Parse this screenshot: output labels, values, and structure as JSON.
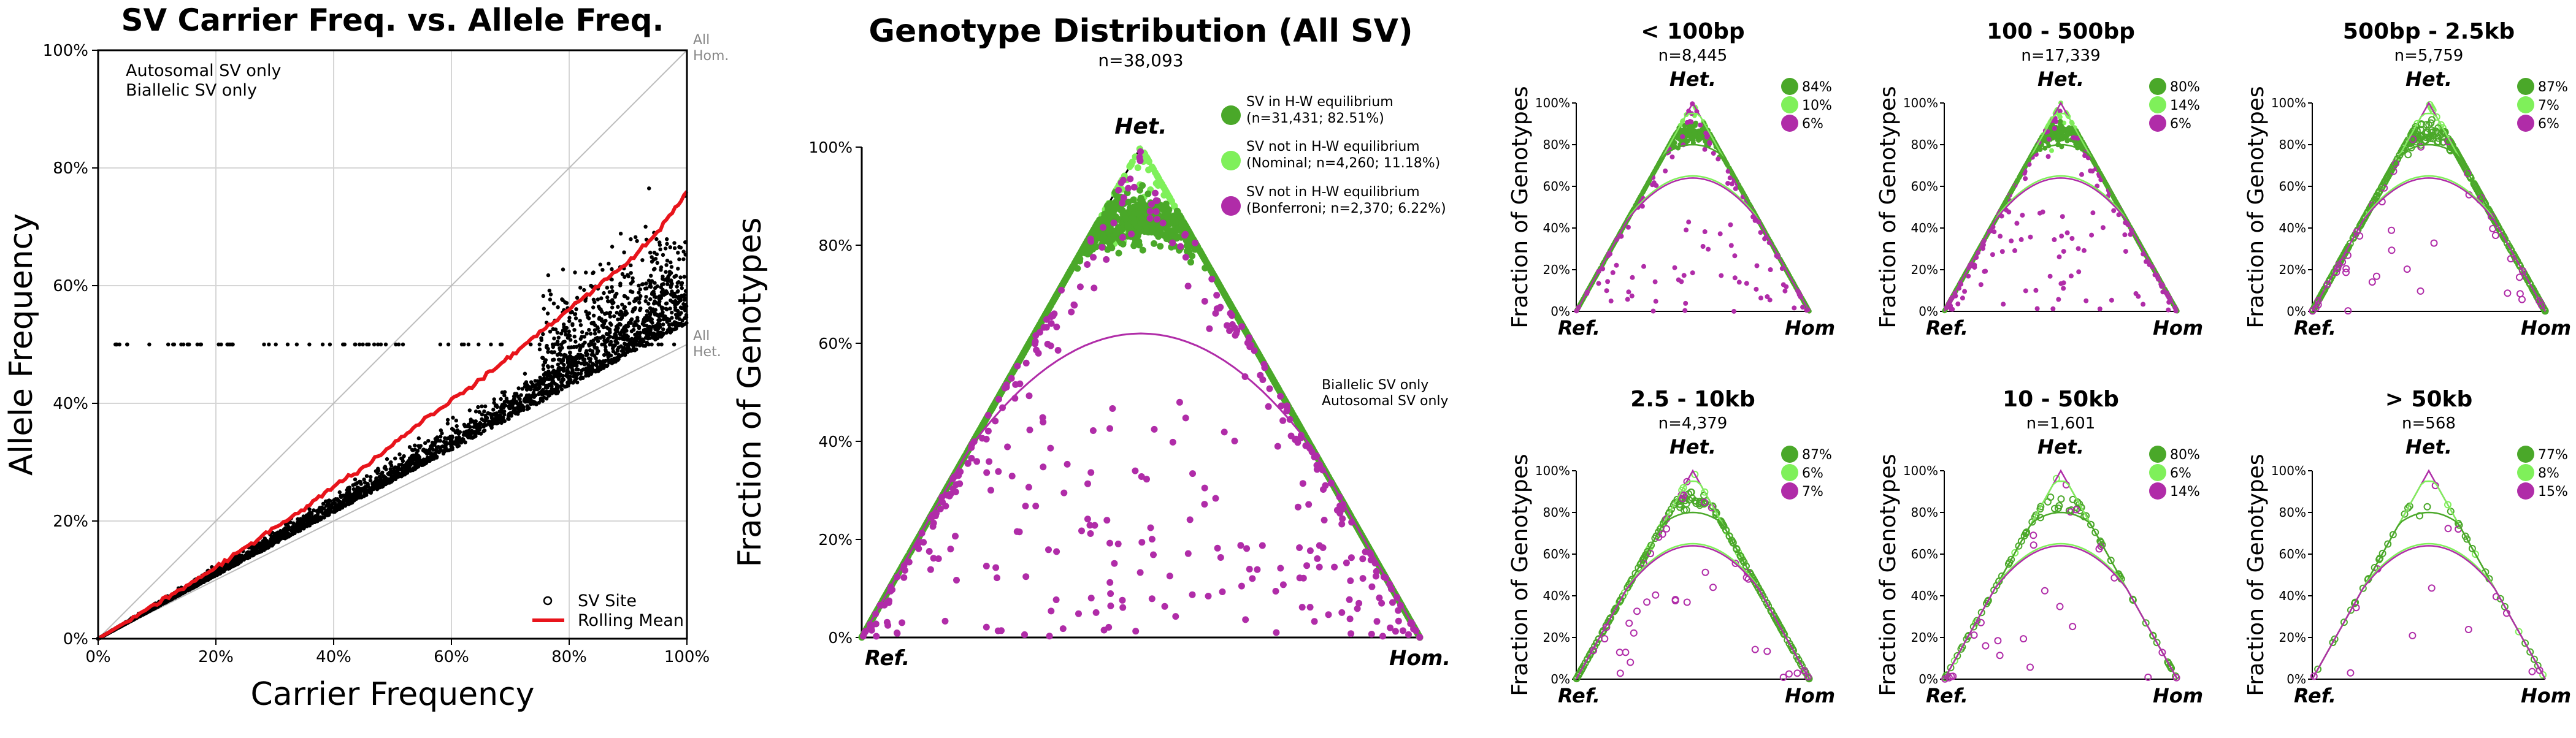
{
  "colors": {
    "hwe_pass": "#4aa829",
    "hwe_nominal": "#7ff05a",
    "hwe_bonf": "#b02ca8",
    "rolling_mean": "#e8141b",
    "sites": "#000000",
    "grid": "#d6d6d6",
    "ref_line": "#bbbbbb",
    "annot": "#888888"
  },
  "panelA": {
    "title": "SV Carrier Freq. vs. Allele Freq.",
    "note1": "Autosomal SV only",
    "note2": "Biallelic SV only",
    "xlabel": "Carrier Frequency",
    "ylabel": "Allele Frequency",
    "ticks": [
      "0%",
      "20%",
      "40%",
      "60%",
      "80%",
      "100%"
    ],
    "all_hom_1": "All",
    "all_hom_2": "Hom.",
    "all_het_1": "All",
    "all_het_2": "Het.",
    "legend_site": "SV Site",
    "legend_mean": "Rolling Mean"
  },
  "panelB": {
    "title": "Genotype Distribution (All SV)",
    "n_label": "n=38,093",
    "ylabel": "Fraction of Genotypes",
    "het": "Het.",
    "ref": "Ref.",
    "hom": "Hom.",
    "ticks": [
      "0%",
      "20%",
      "40%",
      "60%",
      "80%",
      "100%"
    ],
    "legend": [
      {
        "line1": "SV in H-W equilibrium",
        "line2": "(n=31,431; 82.51%)"
      },
      {
        "line1": "SV not in H-W equilibrium",
        "line2": "(Nominal; n=4,260; 11.18%)"
      },
      {
        "line1": "SV not in H-W equilibrium",
        "line2": "(Bonferroni; n=2,370; 6.22%)"
      }
    ],
    "note1": "Biallelic SV only",
    "note2": "Autosomal SV only"
  },
  "small_common": {
    "ylabel": "Fraction of Genotypes",
    "het": "Het.",
    "ref": "Ref.",
    "hom": "Hom",
    "ticks": [
      "0%",
      "20%",
      "40%",
      "60%",
      "80%",
      "100%"
    ]
  },
  "chart_data": [
    {
      "type": "scatter",
      "title": "SV Carrier Freq. vs. Allele Freq.",
      "xlabel": "Carrier Frequency",
      "ylabel": "Allele Frequency",
      "xlim": [
        0,
        1
      ],
      "ylim": [
        0,
        1
      ],
      "grid": true,
      "legend_position": "bottom-right",
      "series": [
        {
          "name": "SV Site",
          "description_of_range": "points lie between y=x/2 (All Het.) and y=x (All Hom.)"
        },
        {
          "name": "Rolling Mean",
          "x": [
            0,
            0.05,
            0.1,
            0.15,
            0.2,
            0.25,
            0.3,
            0.35,
            0.4,
            0.45,
            0.5,
            0.55,
            0.6,
            0.65,
            0.7,
            0.75,
            0.8,
            0.85,
            0.9,
            0.95,
            1.0
          ],
          "y": [
            0,
            0.03,
            0.06,
            0.09,
            0.12,
            0.155,
            0.19,
            0.22,
            0.26,
            0.29,
            0.33,
            0.37,
            0.405,
            0.44,
            0.48,
            0.52,
            0.56,
            0.6,
            0.64,
            0.69,
            0.76
          ]
        }
      ],
      "annotations": [
        "All Hom.",
        "All Het.",
        "Autosomal SV only",
        "Biallelic SV only"
      ]
    },
    {
      "type": "scatter",
      "title": "Genotype Distribution (All SV)",
      "subtitle": "n=38,093",
      "ylabel": "Fraction of Genotypes",
      "ylim": [
        0,
        1
      ],
      "series": [
        {
          "name": "SV in H-W equilibrium",
          "n": 31431,
          "percent": 82.51
        },
        {
          "name": "SV not in H-W equilibrium (Nominal)",
          "n": 4260,
          "percent": 11.18
        },
        {
          "name": "SV not in H-W equilibrium (Bonferroni)",
          "n": 2370,
          "percent": 6.22
        }
      ]
    },
    {
      "type": "scatter",
      "title": "< 100bp",
      "subtitle": "n=8,445",
      "percents": [
        84,
        10,
        6
      ],
      "labels": [
        "84%",
        "10%",
        "6%"
      ]
    },
    {
      "type": "scatter",
      "title": "100 - 500bp",
      "subtitle": "n=17,339",
      "percents": [
        80,
        14,
        6
      ],
      "labels": [
        "80%",
        "14%",
        "6%"
      ]
    },
    {
      "type": "scatter",
      "title": "500bp - 2.5kb",
      "subtitle": "n=5,759",
      "percents": [
        87,
        7,
        6
      ],
      "labels": [
        "87%",
        "7%",
        "6%"
      ]
    },
    {
      "type": "scatter",
      "title": "2.5 - 10kb",
      "subtitle": "n=4,379",
      "percents": [
        87,
        6,
        7
      ],
      "labels": [
        "87%",
        "6%",
        "7%"
      ]
    },
    {
      "type": "scatter",
      "title": "10 - 50kb",
      "subtitle": "n=1,601",
      "percents": [
        80,
        6,
        14
      ],
      "labels": [
        "80%",
        "6%",
        "14%"
      ]
    },
    {
      "type": "scatter",
      "title": "> 50kb",
      "subtitle": "n=568",
      "percents": [
        77,
        8,
        15
      ],
      "labels": [
        "77%",
        "8%",
        "15%"
      ]
    }
  ]
}
